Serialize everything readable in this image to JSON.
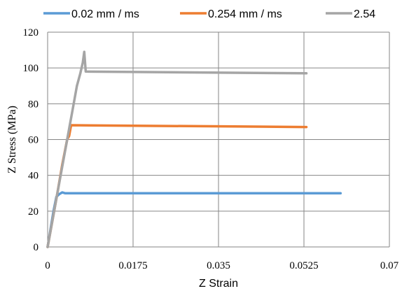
{
  "chart_data": {
    "type": "line",
    "title": "",
    "xlabel": "Z Strain",
    "ylabel": "Z Stress (MPa)",
    "xlim": [
      0,
      0.07
    ],
    "ylim": [
      0,
      120
    ],
    "x_ticks": [
      "0",
      "0.0175",
      "0.035",
      "0.0525",
      "0.07"
    ],
    "x_tick_values": [
      0,
      0.0175,
      0.035,
      0.0525,
      0.07
    ],
    "y_ticks": [
      "0",
      "20",
      "40",
      "60",
      "80",
      "100",
      "120"
    ],
    "y_tick_values": [
      0,
      20,
      40,
      60,
      80,
      100,
      120
    ],
    "grid": "vertical and horizontal",
    "legend_position": "top",
    "series": [
      {
        "name": "0.02 mm / ms",
        "color": "#5b9bd5",
        "x": [
          0,
          0.0006,
          0.0012,
          0.0018,
          0.0024,
          0.003,
          0.0036,
          0.005,
          0.06
        ],
        "y": [
          0,
          10,
          20,
          28,
          29.5,
          30.5,
          30,
          30,
          30
        ]
      },
      {
        "name": "0.254 mm / ms",
        "color": "#ed7d31",
        "x": [
          0,
          0.001,
          0.002,
          0.003,
          0.004,
          0.0044,
          0.0048,
          0.053
        ],
        "y": [
          0,
          15,
          30,
          46,
          60,
          62,
          68,
          67
        ]
      },
      {
        "name": "2.54",
        "color": "#a5a5a5",
        "x": [
          0,
          0.001,
          0.002,
          0.003,
          0.004,
          0.0052,
          0.006,
          0.0067,
          0.0072,
          0.0075,
          0.0078,
          0.053
        ],
        "y": [
          0,
          15,
          30,
          45,
          60,
          78,
          90,
          97,
          103,
          109,
          98,
          97
        ]
      }
    ]
  }
}
